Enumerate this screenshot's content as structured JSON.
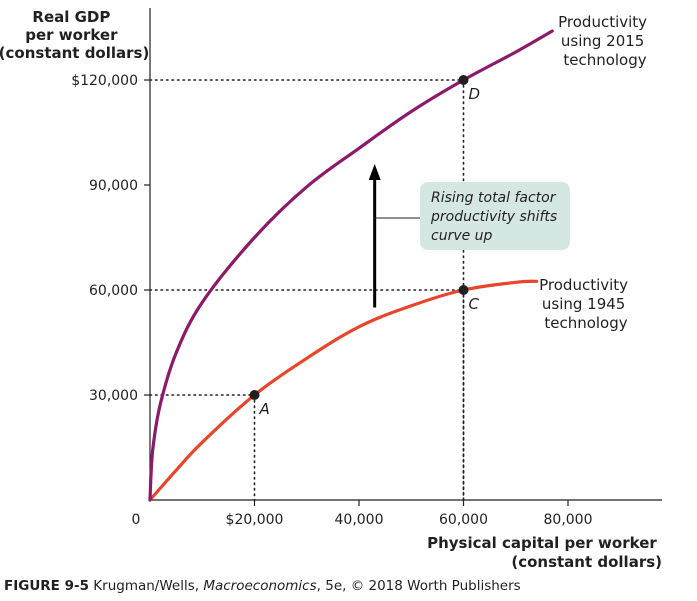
{
  "chart_data": {
    "type": "line",
    "title": "",
    "ylabel_lines": [
      "Real GDP",
      "per worker",
      "(constant dollars)"
    ],
    "xlabel_lines": [
      "Physical capital per worker",
      "(constant dollars)"
    ],
    "origin_label": "0",
    "xlim": [
      0,
      90000
    ],
    "ylim": [
      0,
      125000
    ],
    "x_ticks": [
      {
        "value": 20000,
        "label": "$20,000"
      },
      {
        "value": 40000,
        "label": "40,000"
      },
      {
        "value": 60000,
        "label": "60,000"
      },
      {
        "value": 80000,
        "label": "80,000"
      }
    ],
    "y_ticks": [
      {
        "value": 30000,
        "label": "30,000"
      },
      {
        "value": 60000,
        "label": "60,000"
      },
      {
        "value": 90000,
        "label": "90,000"
      },
      {
        "value": 120000,
        "label": "$120,000"
      }
    ],
    "grid": false,
    "series": [
      {
        "name_lines": [
          "Productivity",
          "using 1945",
          "technology"
        ],
        "color": "#e8452c",
        "x": [
          0,
          5000,
          10000,
          20000,
          30000,
          40000,
          50000,
          60000,
          70000,
          74000
        ],
        "y": [
          0,
          8500,
          16500,
          30000,
          40500,
          49500,
          55500,
          60000,
          62200,
          62500
        ]
      },
      {
        "name_lines": [
          "Productivity",
          "using 2015",
          "technology"
        ],
        "color": "#8b1a6b",
        "x": [
          0,
          500,
          2000,
          5000,
          10000,
          20000,
          30000,
          40000,
          50000,
          60000,
          70000,
          77000
        ],
        "y": [
          0,
          14000,
          27500,
          42000,
          56500,
          75000,
          89500,
          100500,
          111000,
          120000,
          128000,
          134000
        ]
      }
    ],
    "points": [
      {
        "label": "A",
        "x": 20000,
        "y": 30000
      },
      {
        "label": "C",
        "x": 60000,
        "y": 60000
      },
      {
        "label": "D",
        "x": 60000,
        "y": 120000
      }
    ],
    "annotation": {
      "lines": [
        "Rising total factor",
        "productivity shifts",
        "curve up"
      ],
      "arrow_x": 43000,
      "arrow_from_y": 55000,
      "arrow_to_y": 96000,
      "box_color": "#d4e7e3"
    }
  },
  "caption": {
    "figure": "FIGURE 9-5",
    "authors": " Krugman/Wells, ",
    "book": "Macroeconomics",
    "rest": ", 5e, © 2018 Worth Publishers"
  }
}
